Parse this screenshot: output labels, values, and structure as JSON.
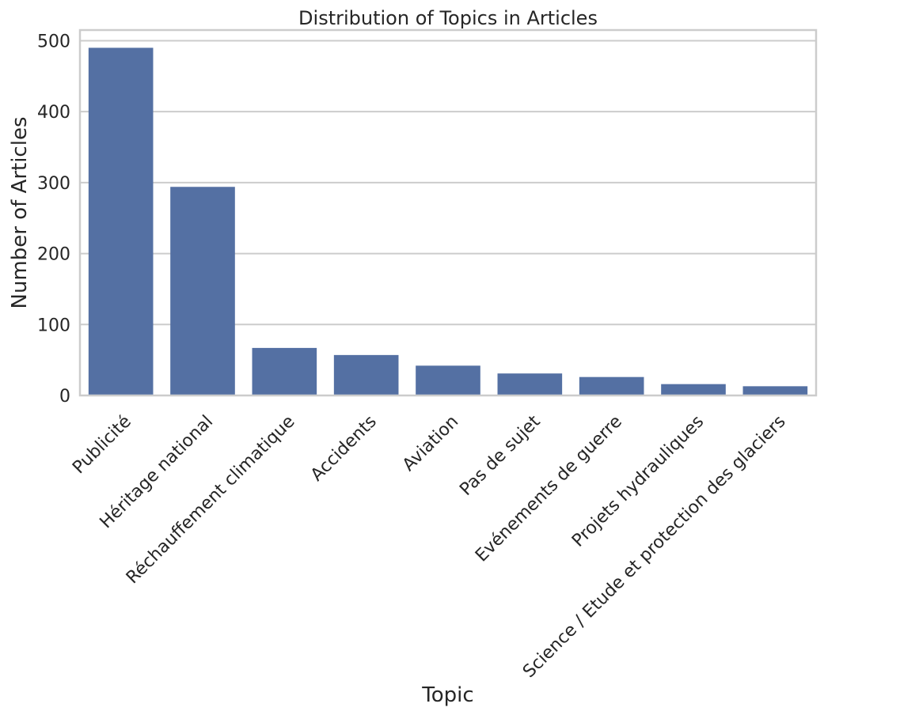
{
  "chart_data": {
    "type": "bar",
    "title": "Distribution of Topics in Articles",
    "xlabel": "Topic",
    "ylabel": "Number of Articles",
    "categories": [
      "Publicité",
      "Héritage national",
      "Réchauffement climatique",
      "Accidents",
      "Aviation",
      "Pas de sujet",
      "Evénements de guerre",
      "Projets hydrauliques",
      "Science / Etude et protection des glaciers"
    ],
    "values": [
      490,
      294,
      67,
      57,
      42,
      31,
      26,
      16,
      13
    ],
    "ylim": [
      0,
      515
    ],
    "yticks": [
      "0",
      "100",
      "200",
      "300",
      "400",
      "500"
    ],
    "grid": true,
    "bar_color": "#5470a3",
    "grid_color": "#cccccc"
  }
}
